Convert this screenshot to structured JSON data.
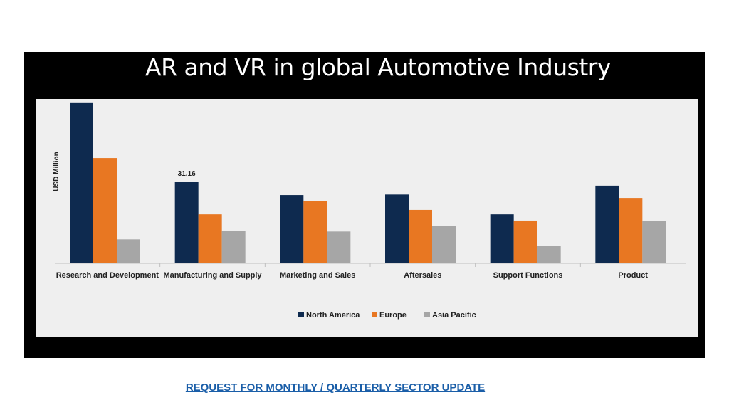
{
  "slide": {
    "title": "AR and VR in global Automotive Industry",
    "cta_link": "REQUEST FOR MONTHLY / QUARTERLY SECTOR UPDATE"
  },
  "colors": {
    "North America": "#0e2a4f",
    "Europe": "#e87722",
    "Asia Pacific": "#a6a6a6",
    "frame": "#000000",
    "panel": "#efefef",
    "link": "#1a5ea8"
  },
  "chart_data": {
    "type": "bar",
    "title": "",
    "xlabel": "",
    "ylabel": "USD Million",
    "ylim": [
      0,
      62
    ],
    "grid": false,
    "legend_position": "bottom-center",
    "categories": [
      "Research and Development",
      "Manufacturing and Supply",
      "Marketing and Sales",
      "Aftersales",
      "Support Functions",
      "Product"
    ],
    "series": [
      {
        "name": "North America",
        "values": [
          61.5,
          31.16,
          26.2,
          26.4,
          18.8,
          29.8
        ]
      },
      {
        "name": "Europe",
        "values": [
          40.4,
          18.8,
          23.9,
          20.5,
          16.4,
          25.1
        ]
      },
      {
        "name": "Asia Pacific",
        "values": [
          9.2,
          12.3,
          12.2,
          14.2,
          6.8,
          16.3
        ]
      }
    ],
    "annotations": [
      {
        "series": "North America",
        "category": "Manufacturing and Supply",
        "text": "31.16"
      }
    ]
  }
}
